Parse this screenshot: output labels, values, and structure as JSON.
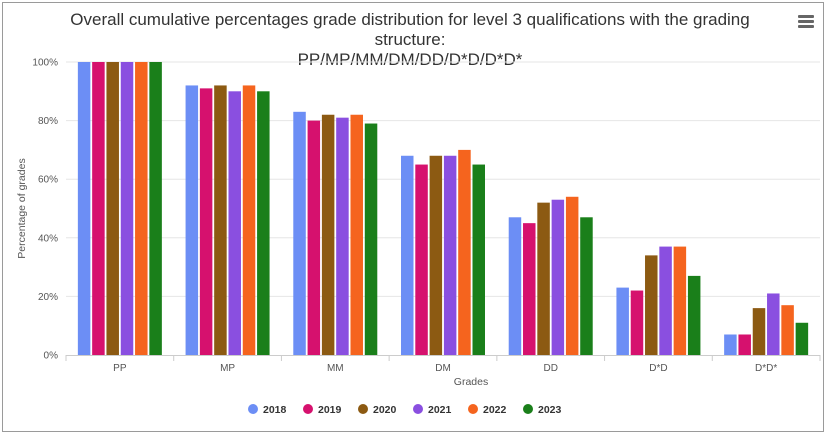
{
  "chart_data": {
    "type": "bar",
    "title_line1": "Overall cumulative percentages grade distribution for level 3 qualifications with the grading structure:",
    "title_line2": "PP/MP/MM/DM/DD/D*D/D*D*",
    "xlabel": "Grades",
    "ylabel": "Percentage of grades",
    "ylim": [
      0,
      100
    ],
    "yticks": [
      "0%",
      "20%",
      "40%",
      "60%",
      "80%",
      "100%"
    ],
    "ytick_values": [
      0,
      20,
      40,
      60,
      80,
      100
    ],
    "grid": true,
    "legend_position": "bottom",
    "categories": [
      "PP",
      "MP",
      "MM",
      "DM",
      "DD",
      "D*D",
      "D*D*"
    ],
    "series": [
      {
        "name": "2018",
        "color": "#6c8ef5",
        "values": [
          100,
          92,
          83,
          68,
          47,
          23,
          7
        ]
      },
      {
        "name": "2019",
        "color": "#d6116e",
        "values": [
          100,
          91,
          80,
          65,
          45,
          22,
          7
        ]
      },
      {
        "name": "2020",
        "color": "#8c5a12",
        "values": [
          100,
          92,
          82,
          68,
          52,
          34,
          16
        ]
      },
      {
        "name": "2021",
        "color": "#8a4fe0",
        "values": [
          100,
          90,
          81,
          68,
          53,
          37,
          21
        ]
      },
      {
        "name": "2022",
        "color": "#f5641e",
        "values": [
          100,
          92,
          82,
          70,
          54,
          37,
          17
        ]
      },
      {
        "name": "2023",
        "color": "#1a7f1a",
        "values": [
          100,
          90,
          79,
          65,
          47,
          27,
          11
        ]
      }
    ]
  },
  "menu": {
    "icon": "hamburger-menu-icon"
  }
}
